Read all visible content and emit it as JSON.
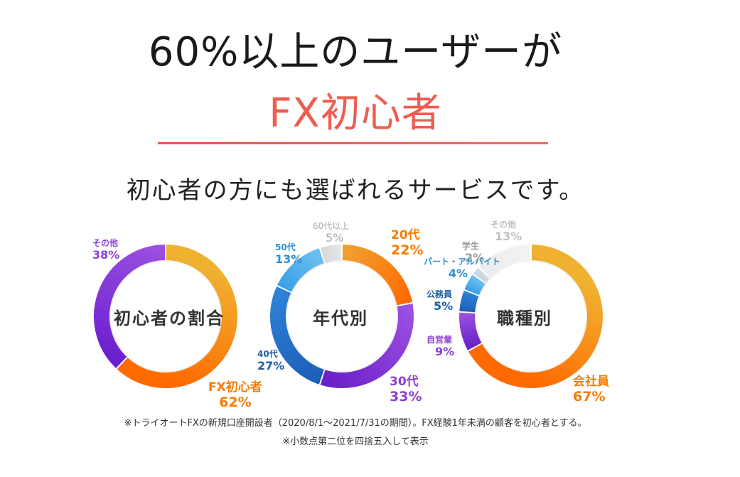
{
  "header": {
    "headline": "60%以上のユーザーが",
    "highlight": "FX初心者",
    "tagline": "初心者の方にも選ばれるサービスです。"
  },
  "colors": {
    "accent": "#ef5c50",
    "orange": "#f57c00",
    "purple": "#8e3fd6",
    "blue": "#1e73c8"
  },
  "chart_data": [
    {
      "type": "pie",
      "title": "初心者の割合",
      "segments": [
        {
          "name": "FX初心者",
          "value": 62,
          "label": "62%",
          "color_from": "#f0b030",
          "color_to": "#ff6a00",
          "label_color": "#f57c00"
        },
        {
          "name": "その他",
          "value": 38,
          "label": "38%",
          "color_from": "#6a1fd0",
          "color_to": "#9a4fe0",
          "label_color": "#8e3fd6"
        }
      ]
    },
    {
      "type": "pie",
      "title": "年代別",
      "segments": [
        {
          "name": "20代",
          "value": 22,
          "label": "22%",
          "color_from": "#f0a030",
          "color_to": "#ff6a00",
          "label_color": "#f57c00"
        },
        {
          "name": "30代",
          "value": 33,
          "label": "33%",
          "color_from": "#9a50e0",
          "color_to": "#6a20c8",
          "label_color": "#8e3fd6"
        },
        {
          "name": "40代",
          "value": 27,
          "label": "27%",
          "color_from": "#1c5fb8",
          "color_to": "#2e82d8",
          "label_color": "#1e5fa8"
        },
        {
          "name": "50代",
          "value": 13,
          "label": "13%",
          "color_from": "#3aa0e6",
          "color_to": "#6cc0f0",
          "label_color": "#2f8fd6"
        },
        {
          "name": "60代以上",
          "value": 5,
          "label": "5%",
          "color_from": "#d8d8d8",
          "color_to": "#e6e6e6",
          "label_color": "#aaaaaa"
        }
      ]
    },
    {
      "type": "pie",
      "title": "職種別",
      "segments": [
        {
          "name": "会社員",
          "value": 67,
          "label": "67%",
          "color_from": "#f0b030",
          "color_to": "#ff6a00",
          "label_color": "#f57c00"
        },
        {
          "name": "自営業",
          "value": 9,
          "label": "9%",
          "color_from": "#6a20c8",
          "color_to": "#9a50e0",
          "label_color": "#8e3fd6"
        },
        {
          "name": "公務員",
          "value": 5,
          "label": "5%",
          "color_from": "#1c5fb8",
          "color_to": "#2e82d8",
          "label_color": "#1e5fa8"
        },
        {
          "name": "パート・アルバイト",
          "value": 4,
          "label": "4%",
          "color_from": "#3aa0e6",
          "color_to": "#6cc0f0",
          "label_color": "#2f8fd6"
        },
        {
          "name": "学生",
          "value": 2,
          "label": "2%",
          "color_from": "#c7d3dd",
          "color_to": "#d6dee6",
          "label_color": "#999999"
        },
        {
          "name": "その他",
          "value": 13,
          "label": "13%",
          "color_from": "#ececec",
          "color_to": "#f3f3f3",
          "label_color": "#c0c0c0"
        }
      ]
    }
  ],
  "notes": {
    "source": "※トライオートFXの新規口座開設者（2020/8/1〜2021/7/31の期間）。FX経験1年未満の顧客を初心者とする。",
    "rounding": "※小数点第二位を四捨五入して表示"
  }
}
